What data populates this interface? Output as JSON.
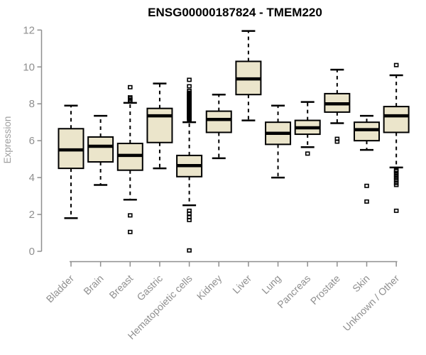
{
  "chart_data": {
    "type": "boxplot",
    "title": "ENSG00000187824 - TMEM220",
    "ylabel": "Expression",
    "xlabel": "",
    "ylim": [
      0,
      12
    ],
    "yticks": [
      0,
      2,
      4,
      6,
      8,
      10,
      12
    ],
    "grid": false,
    "legend": null,
    "colors": {
      "box_fill": "#EBE5CB",
      "box_stroke": "#000000",
      "median": "#000000",
      "whisker": "#000000",
      "axis": "#8F8F8F",
      "tick_label": "#8F8F8F",
      "title": "#000000"
    },
    "categories": [
      "Bladder",
      "Brain",
      "Breast",
      "Gastric",
      "Hematopoietic cells",
      "Kidney",
      "Liver",
      "Lung",
      "Pancreas",
      "Prostate",
      "Skin",
      "Unknown / Other"
    ],
    "boxes": [
      {
        "category": "Bladder",
        "low": 1.8,
        "q1": 4.5,
        "median": 5.5,
        "q3": 6.65,
        "high": 7.9,
        "outliers": []
      },
      {
        "category": "Brain",
        "low": 3.6,
        "q1": 4.85,
        "median": 5.7,
        "q3": 6.2,
        "high": 7.35,
        "outliers": []
      },
      {
        "category": "Breast",
        "low": 2.8,
        "q1": 4.4,
        "median": 5.2,
        "q3": 5.85,
        "high": 8.05,
        "outliers": [
          8.9,
          8.35,
          8.28,
          8.2,
          8.12,
          1.95,
          1.05
        ]
      },
      {
        "category": "Gastric",
        "low": 4.5,
        "q1": 5.9,
        "median": 7.35,
        "q3": 7.75,
        "high": 9.1,
        "outliers": []
      },
      {
        "category": "Hematopoietic cells",
        "low": 2.5,
        "q1": 4.05,
        "median": 4.65,
        "q3": 5.2,
        "high": 7.0,
        "outliers": [
          9.3,
          8.95,
          8.7,
          8.6,
          8.55,
          8.5,
          8.45,
          8.4,
          8.35,
          8.3,
          8.25,
          8.2,
          8.15,
          8.1,
          8.05,
          8.0,
          7.95,
          7.9,
          7.85,
          7.8,
          7.75,
          7.7,
          7.65,
          7.6,
          7.55,
          7.5,
          7.45,
          7.4,
          7.35,
          7.3,
          7.25,
          7.2,
          7.15,
          2.2,
          2.05,
          1.85,
          1.7,
          0.05
        ]
      },
      {
        "category": "Kidney",
        "low": 5.05,
        "q1": 6.45,
        "median": 7.15,
        "q3": 7.6,
        "high": 8.5,
        "outliers": []
      },
      {
        "category": "Liver",
        "low": 7.1,
        "q1": 8.5,
        "median": 9.35,
        "q3": 10.3,
        "high": 11.95,
        "outliers": []
      },
      {
        "category": "Lung",
        "low": 4.0,
        "q1": 5.8,
        "median": 6.4,
        "q3": 7.0,
        "high": 7.9,
        "outliers": []
      },
      {
        "category": "Pancreas",
        "low": 5.65,
        "q1": 6.35,
        "median": 6.7,
        "q3": 7.1,
        "high": 8.1,
        "outliers": [
          5.3
        ]
      },
      {
        "category": "Prostate",
        "low": 6.95,
        "q1": 7.55,
        "median": 8.0,
        "q3": 8.55,
        "high": 9.85,
        "outliers": [
          6.1,
          5.95
        ]
      },
      {
        "category": "Skin",
        "low": 5.5,
        "q1": 6.0,
        "median": 6.6,
        "q3": 7.0,
        "high": 7.35,
        "outliers": [
          3.55,
          2.7
        ]
      },
      {
        "category": "Unknown / Other",
        "low": 4.55,
        "q1": 6.45,
        "median": 7.35,
        "q3": 7.85,
        "high": 9.55,
        "outliers": [
          10.1,
          4.4,
          4.35,
          4.25,
          4.15,
          4.05,
          3.95,
          3.85,
          3.7,
          3.6,
          2.2
        ]
      }
    ]
  }
}
